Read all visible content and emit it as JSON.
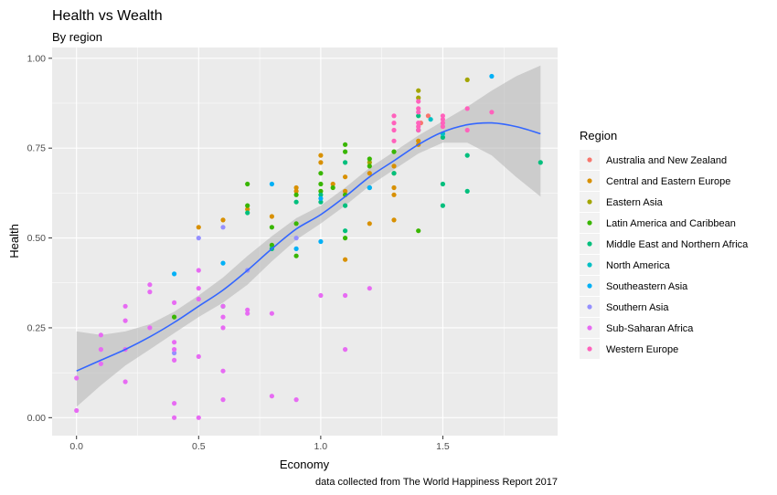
{
  "chart_data": {
    "type": "scatter",
    "title": "Health vs Wealth",
    "subtitle": "By region",
    "xlabel": "Economy",
    "ylabel": "Health",
    "caption": "data collected from The World Happiness Report 2017",
    "xlim": [
      -0.1,
      1.97
    ],
    "ylim": [
      -0.05,
      1.03
    ],
    "x_ticks": [
      0.0,
      0.5,
      1.0,
      1.5
    ],
    "x_tick_labels": [
      "0.0",
      "0.5",
      "1.0",
      "1.5"
    ],
    "y_ticks": [
      0.0,
      0.25,
      0.5,
      0.75,
      1.0
    ],
    "y_tick_labels": [
      "0.00",
      "0.25",
      "0.50",
      "0.75",
      "1.00"
    ],
    "legend_title": "Region",
    "legend_position": "right",
    "grid": true,
    "panel_color": "#ebebeb",
    "smooth_color": "#3366ff",
    "ribbon_color": "#b3b3b3",
    "series": [
      {
        "name": "Australia and New Zealand",
        "color": "#f8766d",
        "points": [
          [
            1.44,
            0.84
          ],
          [
            1.41,
            0.82
          ]
        ]
      },
      {
        "name": "Central and Eastern Europe",
        "color": "#d89000",
        "points": [
          [
            0.5,
            0.53
          ],
          [
            0.6,
            0.55
          ],
          [
            0.7,
            0.58
          ],
          [
            0.8,
            0.56
          ],
          [
            0.9,
            0.63
          ],
          [
            0.9,
            0.64
          ],
          [
            1.0,
            0.73
          ],
          [
            1.0,
            0.71
          ],
          [
            1.05,
            0.65
          ],
          [
            1.1,
            0.67
          ],
          [
            1.1,
            0.63
          ],
          [
            1.1,
            0.44
          ],
          [
            1.2,
            0.68
          ],
          [
            1.2,
            0.54
          ],
          [
            1.3,
            0.64
          ],
          [
            1.3,
            0.62
          ],
          [
            1.3,
            0.7
          ],
          [
            1.3,
            0.55
          ],
          [
            1.4,
            0.77
          ],
          [
            1.4,
            0.76
          ]
        ]
      },
      {
        "name": "Eastern Asia",
        "color": "#a3a500",
        "points": [
          [
            1.4,
            0.91
          ],
          [
            1.4,
            0.89
          ],
          [
            1.6,
            0.94
          ],
          [
            1.3,
            0.68
          ],
          [
            1.2,
            0.71
          ]
        ]
      },
      {
        "name": "Latin America and Caribbean",
        "color": "#39b600",
        "points": [
          [
            0.4,
            0.28
          ],
          [
            0.7,
            0.65
          ],
          [
            0.7,
            0.59
          ],
          [
            0.8,
            0.48
          ],
          [
            0.8,
            0.53
          ],
          [
            0.9,
            0.45
          ],
          [
            0.9,
            0.54
          ],
          [
            0.9,
            0.62
          ],
          [
            1.0,
            0.68
          ],
          [
            1.0,
            0.65
          ],
          [
            1.0,
            0.63
          ],
          [
            1.05,
            0.64
          ],
          [
            1.1,
            0.76
          ],
          [
            1.1,
            0.74
          ],
          [
            1.1,
            0.5
          ],
          [
            1.1,
            0.62
          ],
          [
            1.2,
            0.72
          ],
          [
            1.2,
            0.7
          ],
          [
            1.3,
            0.74
          ],
          [
            1.4,
            0.52
          ]
        ]
      },
      {
        "name": "Middle East and Northern Africa",
        "color": "#00bf7d",
        "points": [
          [
            0.6,
            0.31
          ],
          [
            0.7,
            0.57
          ],
          [
            0.8,
            0.47
          ],
          [
            0.9,
            0.6
          ],
          [
            1.0,
            0.62
          ],
          [
            1.0,
            0.6
          ],
          [
            1.1,
            0.52
          ],
          [
            1.1,
            0.71
          ],
          [
            1.1,
            0.59
          ],
          [
            1.2,
            0.64
          ],
          [
            1.3,
            0.68
          ],
          [
            1.4,
            0.8
          ],
          [
            1.4,
            0.84
          ],
          [
            1.5,
            0.65
          ],
          [
            1.5,
            0.59
          ],
          [
            1.5,
            0.78
          ],
          [
            1.6,
            0.73
          ],
          [
            1.6,
            0.63
          ],
          [
            1.9,
            0.71
          ]
        ]
      },
      {
        "name": "North America",
        "color": "#00bfc4",
        "points": [
          [
            1.5,
            0.79
          ],
          [
            1.45,
            0.83
          ]
        ]
      },
      {
        "name": "Southeastern Asia",
        "color": "#00b0f6",
        "points": [
          [
            0.4,
            0.4
          ],
          [
            0.6,
            0.43
          ],
          [
            0.8,
            0.65
          ],
          [
            0.9,
            0.47
          ],
          [
            1.0,
            0.49
          ],
          [
            1.0,
            0.61
          ],
          [
            1.2,
            0.64
          ],
          [
            1.7,
            0.95
          ]
        ]
      },
      {
        "name": "Southern Asia",
        "color": "#9590ff",
        "points": [
          [
            0.4,
            0.18
          ],
          [
            0.5,
            0.5
          ],
          [
            0.6,
            0.53
          ],
          [
            0.7,
            0.41
          ],
          [
            0.9,
            0.5
          ]
        ]
      },
      {
        "name": "Sub-Saharan Africa",
        "color": "#e76bf3",
        "points": [
          [
            0.0,
            0.02
          ],
          [
            0.0,
            0.11
          ],
          [
            0.1,
            0.15
          ],
          [
            0.1,
            0.19
          ],
          [
            0.1,
            0.23
          ],
          [
            0.2,
            0.1
          ],
          [
            0.2,
            0.19
          ],
          [
            0.2,
            0.27
          ],
          [
            0.2,
            0.31
          ],
          [
            0.3,
            0.25
          ],
          [
            0.3,
            0.35
          ],
          [
            0.3,
            0.37
          ],
          [
            0.4,
            0.0
          ],
          [
            0.4,
            0.04
          ],
          [
            0.4,
            0.16
          ],
          [
            0.4,
            0.19
          ],
          [
            0.4,
            0.21
          ],
          [
            0.4,
            0.32
          ],
          [
            0.5,
            0.0
          ],
          [
            0.5,
            0.17
          ],
          [
            0.5,
            0.33
          ],
          [
            0.5,
            0.36
          ],
          [
            0.5,
            0.41
          ],
          [
            0.6,
            0.05
          ],
          [
            0.6,
            0.13
          ],
          [
            0.6,
            0.25
          ],
          [
            0.6,
            0.28
          ],
          [
            0.6,
            0.31
          ],
          [
            0.7,
            0.29
          ],
          [
            0.7,
            0.3
          ],
          [
            0.8,
            0.06
          ],
          [
            0.8,
            0.29
          ],
          [
            0.9,
            0.05
          ],
          [
            1.0,
            0.34
          ],
          [
            1.1,
            0.19
          ],
          [
            1.1,
            0.34
          ],
          [
            1.2,
            0.36
          ]
        ]
      },
      {
        "name": "Western Europe",
        "color": "#ff62bc",
        "points": [
          [
            1.3,
            0.84
          ],
          [
            1.3,
            0.82
          ],
          [
            1.3,
            0.8
          ],
          [
            1.3,
            0.77
          ],
          [
            1.4,
            0.88
          ],
          [
            1.4,
            0.86
          ],
          [
            1.4,
            0.85
          ],
          [
            1.4,
            0.82
          ],
          [
            1.4,
            0.81
          ],
          [
            1.4,
            0.8
          ],
          [
            1.5,
            0.84
          ],
          [
            1.5,
            0.83
          ],
          [
            1.5,
            0.82
          ],
          [
            1.5,
            0.81
          ],
          [
            1.6,
            0.86
          ],
          [
            1.6,
            0.8
          ],
          [
            1.7,
            0.85
          ]
        ]
      }
    ],
    "smooth": [
      {
        "x": 0.0,
        "y": 0.13,
        "lo": 0.03,
        "hi": 0.24
      },
      {
        "x": 0.1,
        "y": 0.16,
        "lo": 0.09,
        "hi": 0.23
      },
      {
        "x": 0.2,
        "y": 0.19,
        "lo": 0.145,
        "hi": 0.24
      },
      {
        "x": 0.3,
        "y": 0.225,
        "lo": 0.19,
        "hi": 0.26
      },
      {
        "x": 0.4,
        "y": 0.265,
        "lo": 0.235,
        "hi": 0.295
      },
      {
        "x": 0.5,
        "y": 0.31,
        "lo": 0.28,
        "hi": 0.34
      },
      {
        "x": 0.6,
        "y": 0.355,
        "lo": 0.32,
        "hi": 0.39
      },
      {
        "x": 0.7,
        "y": 0.41,
        "lo": 0.37,
        "hi": 0.45
      },
      {
        "x": 0.8,
        "y": 0.47,
        "lo": 0.435,
        "hi": 0.505
      },
      {
        "x": 0.9,
        "y": 0.525,
        "lo": 0.495,
        "hi": 0.555
      },
      {
        "x": 1.0,
        "y": 0.565,
        "lo": 0.54,
        "hi": 0.59
      },
      {
        "x": 1.1,
        "y": 0.615,
        "lo": 0.59,
        "hi": 0.64
      },
      {
        "x": 1.2,
        "y": 0.67,
        "lo": 0.645,
        "hi": 0.695
      },
      {
        "x": 1.3,
        "y": 0.715,
        "lo": 0.69,
        "hi": 0.74
      },
      {
        "x": 1.4,
        "y": 0.76,
        "lo": 0.735,
        "hi": 0.785
      },
      {
        "x": 1.5,
        "y": 0.795,
        "lo": 0.765,
        "hi": 0.825
      },
      {
        "x": 1.6,
        "y": 0.815,
        "lo": 0.765,
        "hi": 0.865
      },
      {
        "x": 1.7,
        "y": 0.82,
        "lo": 0.73,
        "hi": 0.91
      },
      {
        "x": 1.8,
        "y": 0.81,
        "lo": 0.67,
        "hi": 0.95
      },
      {
        "x": 1.9,
        "y": 0.79,
        "lo": 0.615,
        "hi": 0.98
      }
    ]
  }
}
